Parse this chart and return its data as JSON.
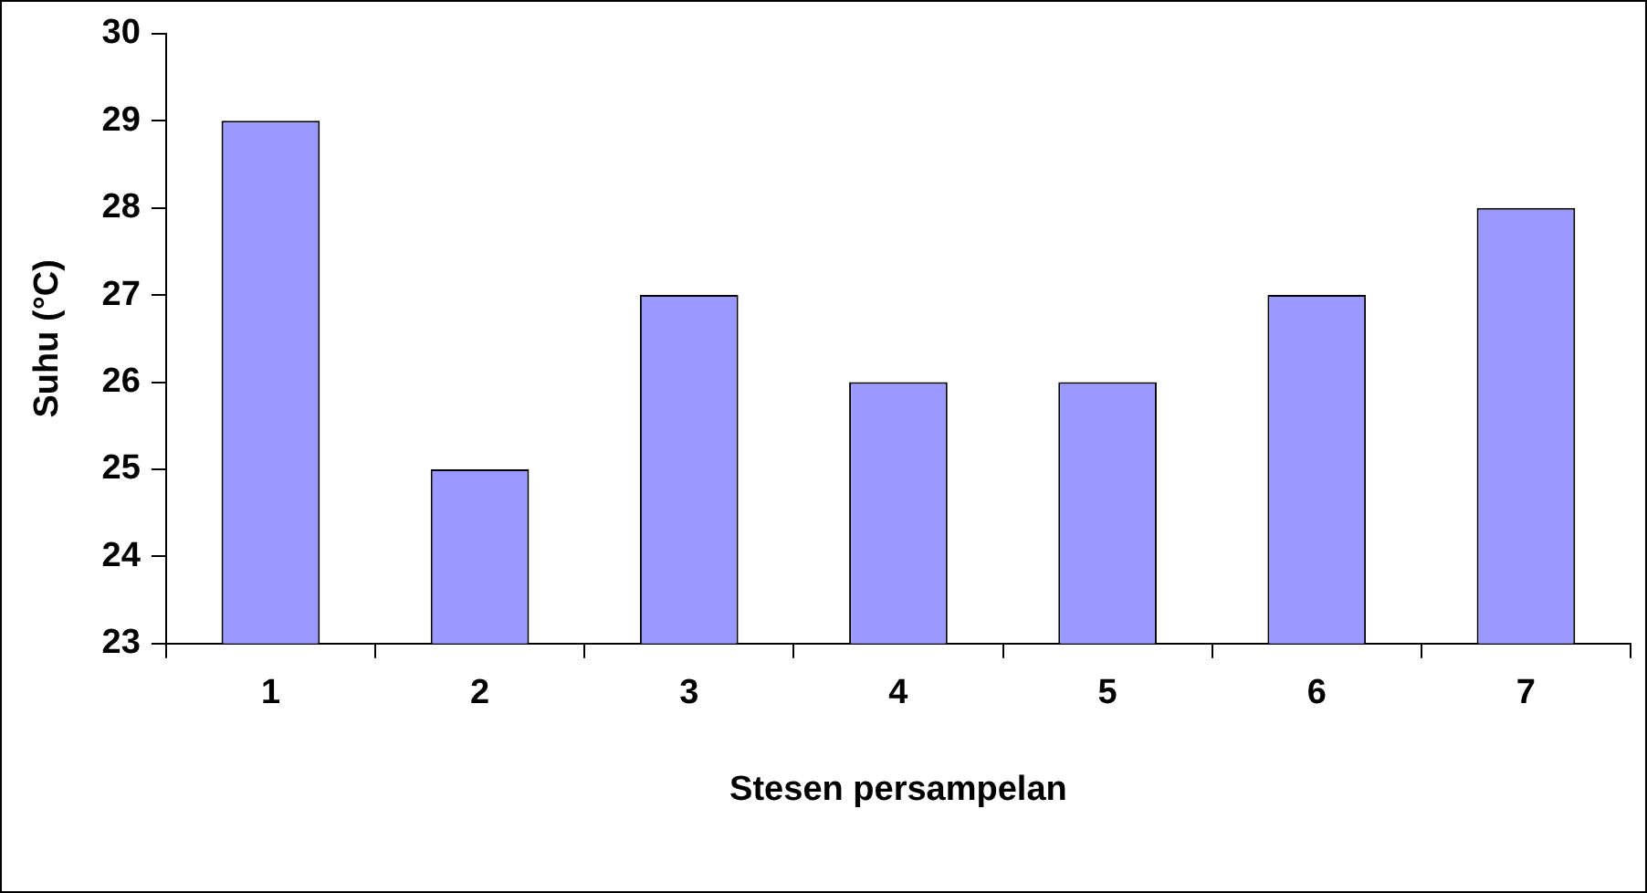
{
  "chart_data": {
    "type": "bar",
    "xlabel": "Stesen persampelan",
    "ylabel": "Suhu (°C)",
    "categories": [
      "1",
      "2",
      "3",
      "4",
      "5",
      "6",
      "7"
    ],
    "values": [
      29,
      25,
      27,
      26,
      26,
      27,
      28
    ],
    "color": "#9999ff",
    "ylim": [
      23,
      30
    ],
    "yticks": [
      23,
      24,
      25,
      26,
      27,
      28,
      29,
      30
    ],
    "grid": false,
    "legend": false
  }
}
